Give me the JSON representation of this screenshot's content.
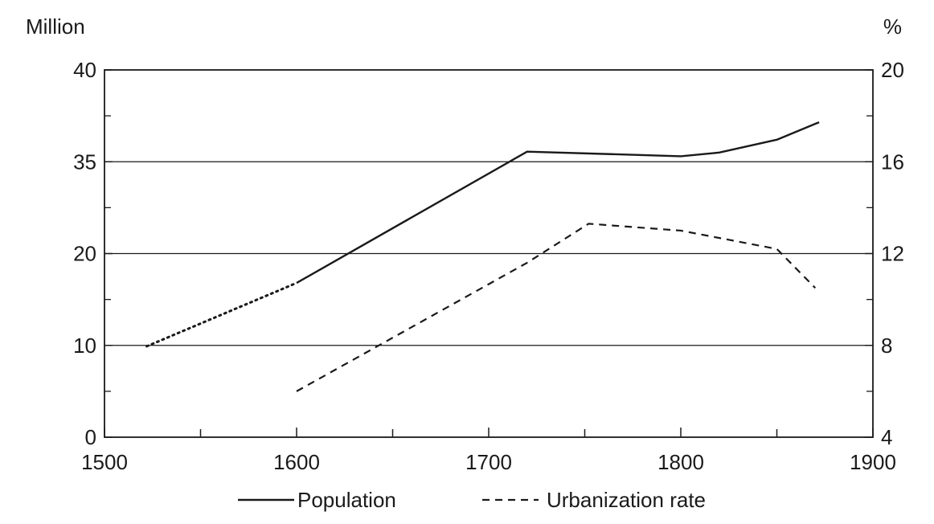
{
  "chart_data": {
    "type": "line",
    "title": "",
    "x_axis": {
      "range": [
        1500,
        1900
      ],
      "ticks": [
        "1500",
        "1600",
        "1700",
        "1800",
        "1900"
      ],
      "minor_step": 50
    },
    "y_left": {
      "unit": "Million",
      "tick_labels": [
        "0",
        "10",
        "20",
        "35",
        "40"
      ],
      "tick_positions": [
        0,
        1,
        2,
        3,
        4
      ],
      "note": "labels are non-linear: tick positions are evenly spaced"
    },
    "y_right": {
      "unit": "%",
      "range": [
        4,
        20
      ],
      "ticks": [
        "4",
        "8",
        "12",
        "16",
        "20"
      ]
    },
    "grid": {
      "horizontal": true,
      "lines_at_left_ticks": [
        "10",
        "20",
        "35"
      ]
    },
    "legend": {
      "placement": "bottom-center"
    },
    "series": [
      {
        "name": "Population",
        "axis": "left",
        "style": "solid",
        "estimated_segment": {
          "style": "dotted",
          "x": [
            1522,
            1600
          ],
          "level": [
            0.99,
            1.68
          ]
        },
        "x": [
          1600,
          1720,
          1800,
          1820,
          1850,
          1872
        ],
        "level": [
          1.68,
          3.11,
          3.06,
          3.1,
          3.24,
          3.43
        ]
      },
      {
        "name": "Urbanization rate",
        "axis": "right",
        "style": "dashed",
        "x": [
          1600,
          1720,
          1752,
          1800,
          1850,
          1870
        ],
        "y": [
          6.0,
          11.6,
          13.3,
          13.0,
          12.2,
          10.5
        ]
      }
    ]
  }
}
